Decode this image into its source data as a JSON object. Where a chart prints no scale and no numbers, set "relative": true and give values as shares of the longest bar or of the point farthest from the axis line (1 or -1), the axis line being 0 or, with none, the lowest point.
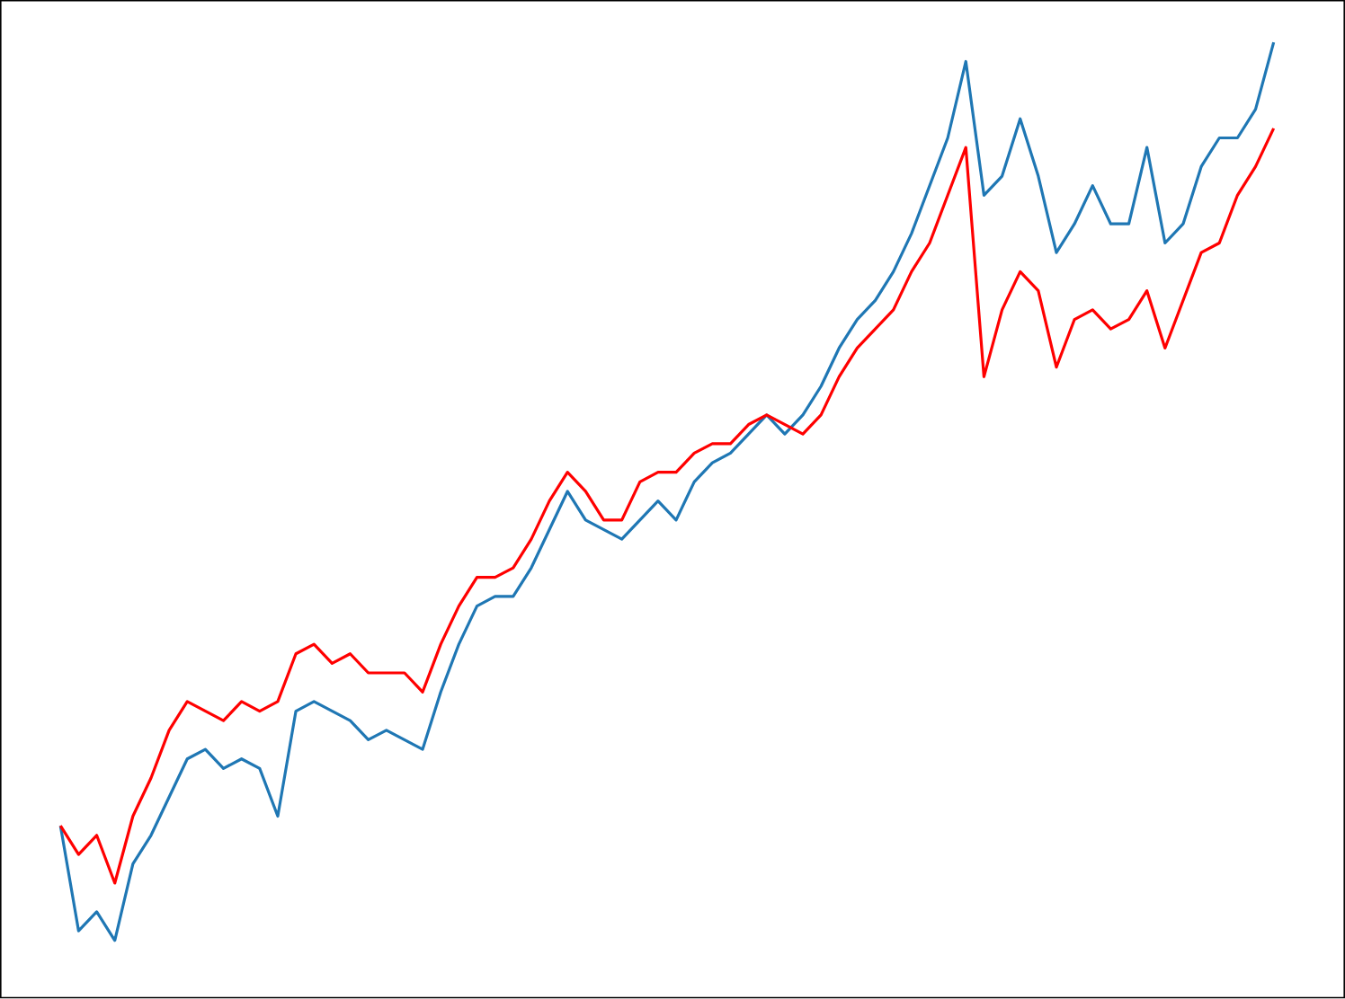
{
  "chart_data": {
    "type": "line",
    "relative": true,
    "categories": [
      null,
      null,
      null,
      null,
      null,
      null,
      null,
      null,
      null,
      null,
      null,
      null,
      null,
      null,
      null,
      null,
      null,
      null,
      null,
      null,
      null,
      null,
      null,
      null,
      null,
      null,
      null,
      null,
      null,
      null,
      null,
      null,
      null,
      null,
      null,
      null,
      null,
      null,
      null,
      null,
      null,
      null,
      null,
      null,
      null,
      null,
      null,
      null,
      null,
      null,
      null,
      null,
      null,
      null,
      null,
      null,
      null,
      null,
      null,
      null,
      null,
      null,
      null,
      null,
      null,
      null,
      null,
      null
    ],
    "series": [
      {
        "color": "#1f77b4",
        "values": [
          0.18,
          0.07,
          0.09,
          0.06,
          0.14,
          0.17,
          0.21,
          0.25,
          0.26,
          0.24,
          0.25,
          0.24,
          0.19,
          0.3,
          0.31,
          0.3,
          0.29,
          0.27,
          0.28,
          0.27,
          0.26,
          0.32,
          0.37,
          0.41,
          0.42,
          0.42,
          0.45,
          0.49,
          0.53,
          0.5,
          0.49,
          0.48,
          0.5,
          0.52,
          0.5,
          0.54,
          0.56,
          0.57,
          0.59,
          0.61,
          0.59,
          0.61,
          0.64,
          0.68,
          0.71,
          0.73,
          0.76,
          0.8,
          0.85,
          0.9,
          0.98,
          0.84,
          0.86,
          0.92,
          0.86,
          0.78,
          0.81,
          0.85,
          0.81,
          0.81,
          0.89,
          0.79,
          0.81,
          0.87,
          0.9,
          0.9,
          0.93,
          1.0
        ]
      },
      {
        "color": "#ff0000",
        "values": [
          0.18,
          0.15,
          0.17,
          0.12,
          0.19,
          0.23,
          0.28,
          0.31,
          0.3,
          0.29,
          0.31,
          0.3,
          0.31,
          0.36,
          0.37,
          0.35,
          0.36,
          0.34,
          0.34,
          0.34,
          0.32,
          0.37,
          0.41,
          0.44,
          0.44,
          0.45,
          0.48,
          0.52,
          0.55,
          0.53,
          0.5,
          0.5,
          0.54,
          0.55,
          0.55,
          0.57,
          0.58,
          0.58,
          0.6,
          0.61,
          0.6,
          0.59,
          0.61,
          0.65,
          0.68,
          0.7,
          0.72,
          0.76,
          0.79,
          0.84,
          0.89,
          0.65,
          0.72,
          0.76,
          0.74,
          0.66,
          0.71,
          0.72,
          0.7,
          0.71,
          0.74,
          0.68,
          0.73,
          0.78,
          0.79,
          0.84,
          0.87,
          0.91
        ]
      }
    ]
  }
}
